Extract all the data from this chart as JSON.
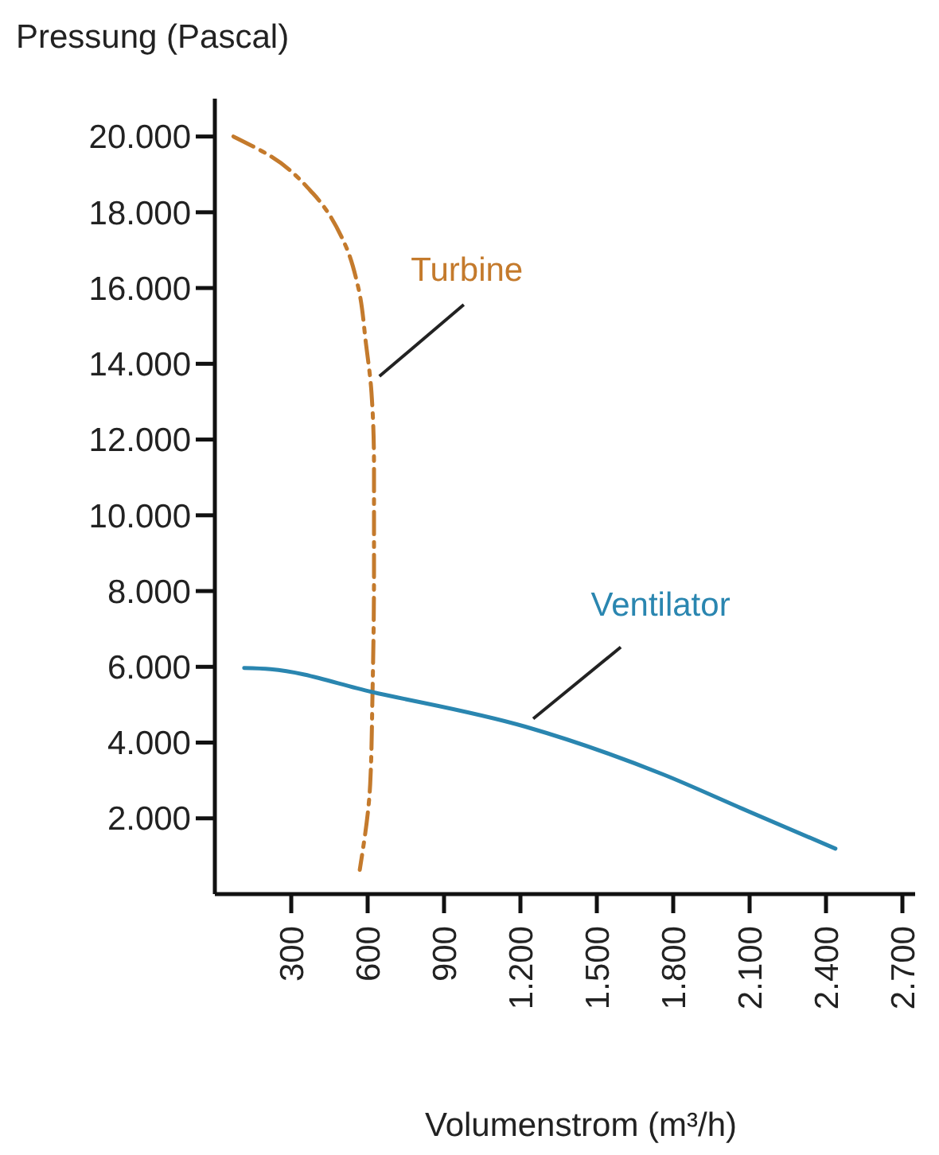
{
  "chart_data": {
    "type": "line",
    "xlabel": "Volumenstrom (m³/h)",
    "ylabel": "Pressung (Pascal)",
    "xlim": [
      0,
      2750
    ],
    "ylim": [
      0,
      21000
    ],
    "xticks": [
      300,
      600,
      900,
      {
        "value": 1200,
        "label": "1.200"
      },
      {
        "value": 1500,
        "label": "1.500"
      },
      {
        "value": 1800,
        "label": "1.800"
      },
      {
        "value": 2100,
        "label": "2.100"
      },
      {
        "value": 2400,
        "label": "2.400"
      },
      {
        "value": 2700,
        "label": "2.700"
      }
    ],
    "yticks": [
      {
        "value": 2000,
        "label": "2.000"
      },
      {
        "value": 4000,
        "label": "4.000"
      },
      {
        "value": 6000,
        "label": "6.000"
      },
      {
        "value": 8000,
        "label": "8.000"
      },
      {
        "value": 10000,
        "label": "10.000"
      },
      {
        "value": 12000,
        "label": "12.000"
      },
      {
        "value": 14000,
        "label": "14.000"
      },
      {
        "value": 16000,
        "label": "16.000"
      },
      {
        "value": 18000,
        "label": "18.000"
      },
      {
        "value": 20000,
        "label": "20.000"
      }
    ],
    "marker": "none",
    "series": [
      {
        "name": "Turbine",
        "color": "#c47a2c",
        "line_style": "dashed",
        "x": [
          73,
          219,
          385,
          510,
          562,
          594,
          615,
          625,
          625,
          619,
          610,
          569
        ],
        "values": [
          20000,
          19480,
          18500,
          17170,
          16050,
          14500,
          13250,
          11300,
          8490,
          5260,
          2900,
          640
        ]
      },
      {
        "name": "Ventilator",
        "color": "#2a86b0",
        "line_style": "solid",
        "x": [
          115,
          219,
          615,
          1219,
          1760,
          2073,
          2437
        ],
        "values": [
          5970,
          5940,
          5340,
          4420,
          3160,
          2250,
          1200
        ]
      }
    ]
  }
}
